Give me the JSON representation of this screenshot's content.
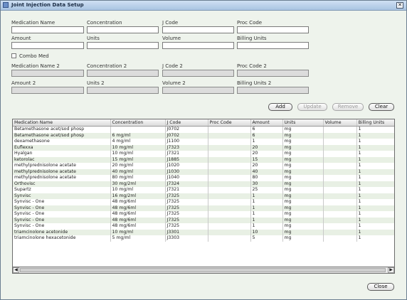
{
  "window": {
    "title": "Joint Injection Data Setup",
    "close_glyph": "✕"
  },
  "form": {
    "medication_name": {
      "label": "Medication Name",
      "value": ""
    },
    "concentration": {
      "label": "Concentration",
      "value": ""
    },
    "j_code": {
      "label": "J Code",
      "value": ""
    },
    "proc_code": {
      "label": "Proc Code",
      "value": ""
    },
    "amount": {
      "label": "Amount",
      "value": ""
    },
    "units": {
      "label": "Units",
      "value": ""
    },
    "volume": {
      "label": "Volume",
      "value": ""
    },
    "billing_units": {
      "label": "Billing Units",
      "value": ""
    },
    "combo_med": {
      "label": "Combo Med",
      "checked": false
    },
    "medication_name_2": {
      "label": "Medication Name 2",
      "value": ""
    },
    "concentration_2": {
      "label": "Concentration 2",
      "value": ""
    },
    "j_code_2": {
      "label": "J Code 2",
      "value": ""
    },
    "proc_code_2": {
      "label": "Proc Code 2",
      "value": ""
    },
    "amount_2": {
      "label": "Amount 2",
      "value": ""
    },
    "units_2": {
      "label": "Units 2",
      "value": ""
    },
    "volume_2": {
      "label": "Volume 2",
      "value": ""
    },
    "billing_units_2": {
      "label": "Billing Units 2",
      "value": ""
    }
  },
  "buttons": {
    "add": "Add",
    "update": "Update",
    "remove": "Remove",
    "clear": "Clear",
    "close": "Close"
  },
  "table": {
    "columns": [
      "Medication Name",
      "Concentration",
      "J Code",
      "Proc Code",
      "Amount",
      "Units",
      "Volume",
      "Billing Units"
    ],
    "rows": [
      [
        "Betamethasone acet/sod phosp",
        "",
        "J0702",
        "",
        "6",
        "mg",
        "",
        "1"
      ],
      [
        "Betamethasone acet/sod phosp",
        "6 mg/ml",
        "J0702",
        "",
        "6",
        "mg",
        "",
        "1"
      ],
      [
        "dexamethasone",
        "4 mg/ml",
        "J1100",
        "",
        "1",
        "mg",
        "",
        "1"
      ],
      [
        "Euflexxa",
        "10 mg/ml",
        "J7323",
        "",
        "20",
        "mg",
        "",
        "1"
      ],
      [
        "Hyalgan",
        "10 mg/ml",
        "J7321",
        "",
        "20",
        "mg",
        "",
        "1"
      ],
      [
        "ketorolac",
        "15 mg/ml",
        "J1885",
        "",
        "15",
        "mg",
        "",
        "1"
      ],
      [
        "methylprednisolone acetate",
        "20 mg/ml",
        "J1020",
        "",
        "20",
        "mg",
        "",
        "1"
      ],
      [
        "methylprednisolone acetate",
        "40 mg/ml",
        "J1030",
        "",
        "40",
        "mg",
        "",
        "1"
      ],
      [
        "methylprednisolone acetate",
        "80 mg/ml",
        "J1040",
        "",
        "80",
        "mg",
        "",
        "1"
      ],
      [
        "Orthovisc",
        "30 mg/2ml",
        "J7324",
        "",
        "30",
        "mg",
        "",
        "1"
      ],
      [
        "Supartz",
        "10 mg/ml",
        "J7321",
        "",
        "25",
        "mg",
        "",
        "1"
      ],
      [
        "Synvisc",
        "16 mg/2ml",
        "J7325",
        "",
        "1",
        "mg",
        "",
        "1"
      ],
      [
        "Synvisc - One",
        "48 mg/6ml",
        "J7325",
        "",
        "1",
        "mg",
        "",
        "1"
      ],
      [
        "Synvisc - One",
        "48 mg/6ml",
        "J7325",
        "",
        "1",
        "mg",
        "",
        "1"
      ],
      [
        "Synvisc - One",
        "48 mg/6ml",
        "J7325",
        "",
        "1",
        "mg",
        "",
        "1"
      ],
      [
        "Synvisc - One",
        "48 mg/6ml",
        "J7325",
        "",
        "1",
        "mg",
        "",
        "1"
      ],
      [
        "Synvisc - One",
        "48 mg/6ml",
        "J7325",
        "",
        "1",
        "mg",
        "",
        "1"
      ],
      [
        "triamcinolone acetonide",
        "10 mg/ml",
        "J3301",
        "",
        "10",
        "mg",
        "",
        "1"
      ],
      [
        "triamcinolone hexacetonide",
        "5 mg/ml",
        "J3303",
        "",
        "5",
        "mg",
        "",
        "1"
      ]
    ]
  },
  "scrollbar": {
    "left_arrow": "◀",
    "right_arrow": "▶"
  }
}
